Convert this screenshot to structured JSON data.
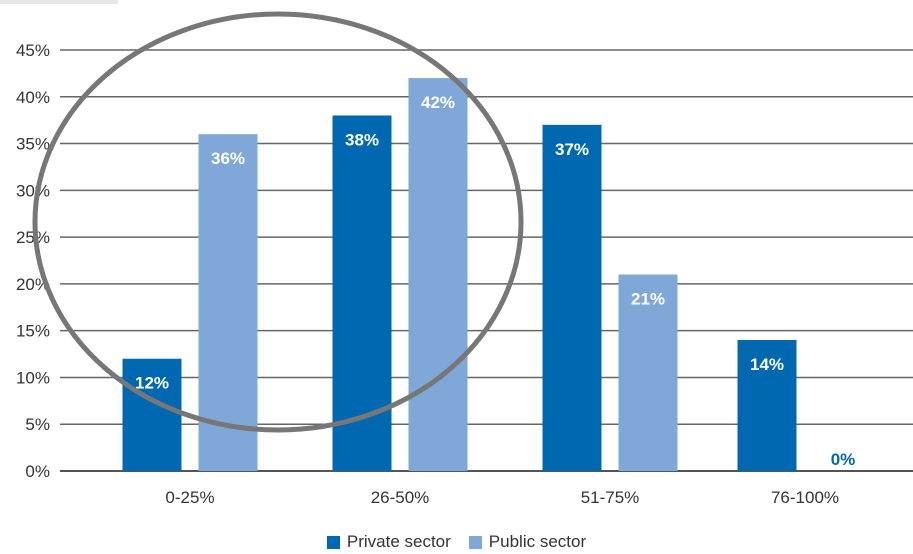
{
  "chart_data": {
    "type": "bar",
    "categories": [
      "0-25%",
      "26-50%",
      "51-75%",
      "76-100%"
    ],
    "series": [
      {
        "name": "Private sector",
        "values": [
          12,
          38,
          37,
          14
        ],
        "labels": [
          "12%",
          "38%",
          "37%",
          "14%"
        ],
        "color": "#0067b1"
      },
      {
        "name": "Public sector",
        "values": [
          36,
          42,
          21,
          0
        ],
        "labels": [
          "36%",
          "42%",
          "21%",
          "0%"
        ],
        "color": "#7fa8d9"
      }
    ],
    "y_ticks": [
      "0%",
      "5%",
      "10%",
      "15%",
      "20%",
      "25%",
      "30%",
      "35%",
      "40%",
      "45%"
    ],
    "ylim": [
      0,
      45
    ],
    "grid": true,
    "legend": "bottom-center",
    "title": "",
    "xlabel": "",
    "ylabel": ""
  },
  "annotation": {
    "shape": "ellipse",
    "color": "#777777"
  }
}
